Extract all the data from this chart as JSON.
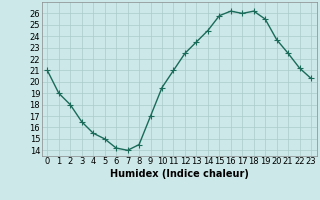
{
  "x": [
    0,
    1,
    2,
    3,
    4,
    5,
    6,
    7,
    8,
    9,
    10,
    11,
    12,
    13,
    14,
    15,
    16,
    17,
    18,
    19,
    20,
    21,
    22,
    23
  ],
  "y": [
    21,
    19,
    18,
    16.5,
    15.5,
    15,
    14.2,
    14,
    14.5,
    17,
    19.5,
    21,
    22.5,
    23.5,
    24.5,
    25.8,
    26.2,
    26,
    26.2,
    25.5,
    23.7,
    22.5,
    21.2,
    20.3
  ],
  "line_color": "#1a6b5a",
  "marker": "+",
  "marker_size": 4,
  "line_width": 1.0,
  "bg_color": "#cce8e8",
  "grid_color": "#aacccc",
  "xlabel": "Humidex (Indice chaleur)",
  "xlabel_fontsize": 7,
  "tick_fontsize": 6,
  "xlim": [
    -0.5,
    23.5
  ],
  "ylim": [
    13.5,
    27
  ],
  "yticks": [
    14,
    15,
    16,
    17,
    18,
    19,
    20,
    21,
    22,
    23,
    24,
    25,
    26
  ],
  "xticks": [
    0,
    1,
    2,
    3,
    4,
    5,
    6,
    7,
    8,
    9,
    10,
    11,
    12,
    13,
    14,
    15,
    16,
    17,
    18,
    19,
    20,
    21,
    22,
    23
  ]
}
